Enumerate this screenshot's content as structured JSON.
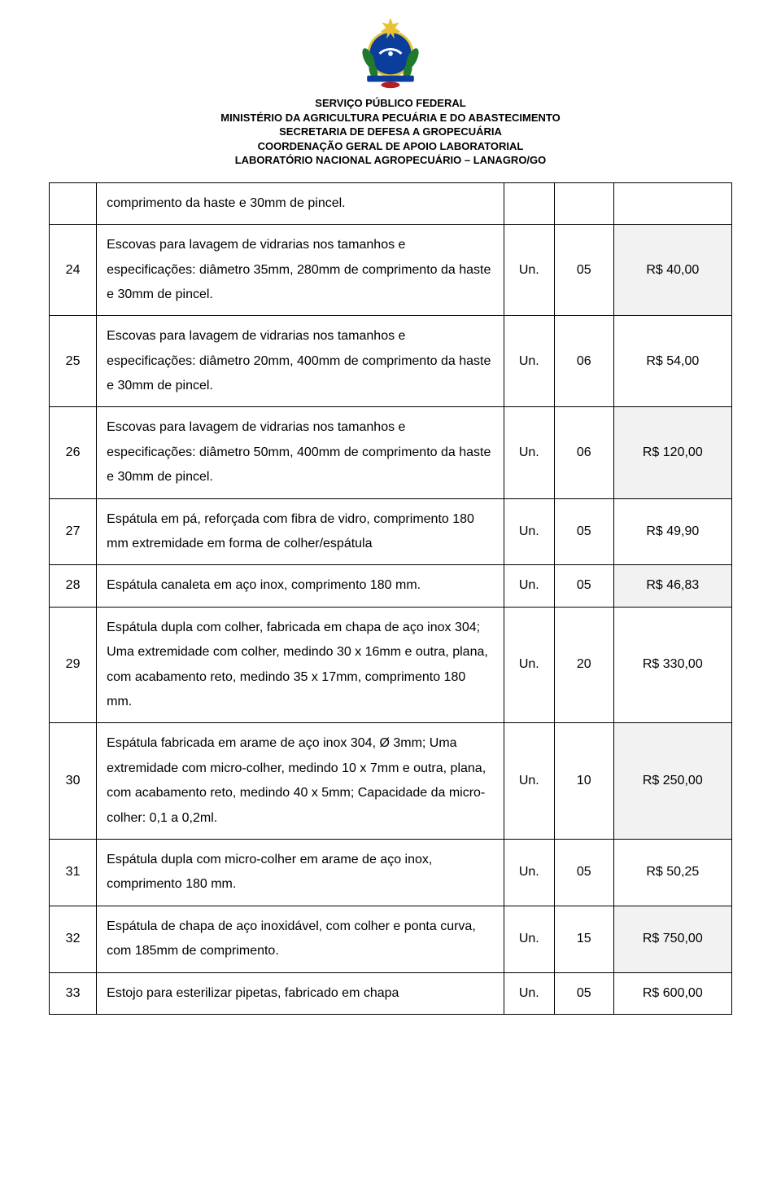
{
  "header": {
    "line1": "SERVIÇO PÚBLICO FEDERAL",
    "line2": "MINISTÉRIO DA AGRICULTURA PECUÁRIA E DO ABASTECIMENTO",
    "line3": "SECRETARIA DE DEFESA A GROPECUÁRIA",
    "line4": "COORDENAÇÃO GERAL DE APOIO LABORATORIAL",
    "line5": "LABORATÓRIO NACIONAL AGROPECUÁRIO – LANAGRO/GO"
  },
  "seal": {
    "primary_color": "#0b3e9c",
    "accent_gold": "#e8c233",
    "accent_green": "#1f7a2e",
    "accent_red": "#b22020",
    "width": 96,
    "height": 96
  },
  "table": {
    "rows": [
      {
        "num": "",
        "desc": "comprimento da haste e 30mm de pincel.",
        "unit": "",
        "qty": "",
        "price": "",
        "shade_price": false,
        "continuation": true
      },
      {
        "num": "24",
        "desc": "Escovas para lavagem de vidrarias nos tamanhos e especificações: diâmetro 35mm, 280mm de comprimento da haste e 30mm de pincel.",
        "unit": "Un.",
        "qty": "05",
        "price": "R$ 40,00",
        "shade_price": true
      },
      {
        "num": "25",
        "desc": "Escovas para lavagem de vidrarias nos tamanhos e especificações: diâmetro 20mm, 400mm de comprimento da haste e 30mm de pincel.",
        "unit": "Un.",
        "qty": "06",
        "price": "R$ 54,00",
        "shade_price": false
      },
      {
        "num": "26",
        "desc": "Escovas para lavagem de vidrarias nos tamanhos e especificações: diâmetro 50mm, 400mm de comprimento da haste e 30mm de pincel.",
        "unit": "Un.",
        "qty": "06",
        "price": "R$ 120,00",
        "shade_price": true
      },
      {
        "num": "27",
        "desc": "Espátula em pá, reforçada com fibra de vidro, comprimento 180 mm extremidade em forma de colher/espátula",
        "unit": "Un.",
        "qty": "05",
        "price": "R$ 49,90",
        "shade_price": false
      },
      {
        "num": "28",
        "desc": "Espátula canaleta em aço inox, comprimento 180 mm.",
        "unit": "Un.",
        "qty": "05",
        "price": "R$ 46,83",
        "shade_price": true
      },
      {
        "num": "29",
        "desc": "Espátula dupla com colher, fabricada em chapa de aço inox 304; Uma extremidade com colher, medindo 30 x 16mm e outra, plana, com acabamento reto, medindo 35 x 17mm, comprimento 180 mm.",
        "unit": "Un.",
        "qty": "20",
        "price": "R$ 330,00",
        "shade_price": false
      },
      {
        "num": "30",
        "desc": "Espátula fabricada em arame de aço inox 304, Ø 3mm; Uma extremidade com micro-colher, medindo 10 x 7mm e outra, plana, com acabamento reto, medindo 40 x 5mm; Capacidade da micro-colher: 0,1 a 0,2ml.",
        "unit": "Un.",
        "qty": "10",
        "price": "R$ 250,00",
        "shade_price": true
      },
      {
        "num": "31",
        "desc": "Espátula dupla com micro-colher em arame de aço inox, comprimento 180 mm.",
        "unit": "Un.",
        "qty": "05",
        "price": "R$ 50,25",
        "shade_price": false
      },
      {
        "num": "32",
        "desc": "Espátula de chapa de aço inoxidável, com colher e ponta curva, com 185mm de comprimento.",
        "unit": "Un.",
        "qty": "15",
        "price": "R$ 750,00",
        "shade_price": true
      },
      {
        "num": "33",
        "desc": "Estojo para esterilizar pipetas, fabricado em chapa",
        "unit": "Un.",
        "qty": "05",
        "price": "R$ 600,00",
        "shade_price": false
      }
    ]
  }
}
